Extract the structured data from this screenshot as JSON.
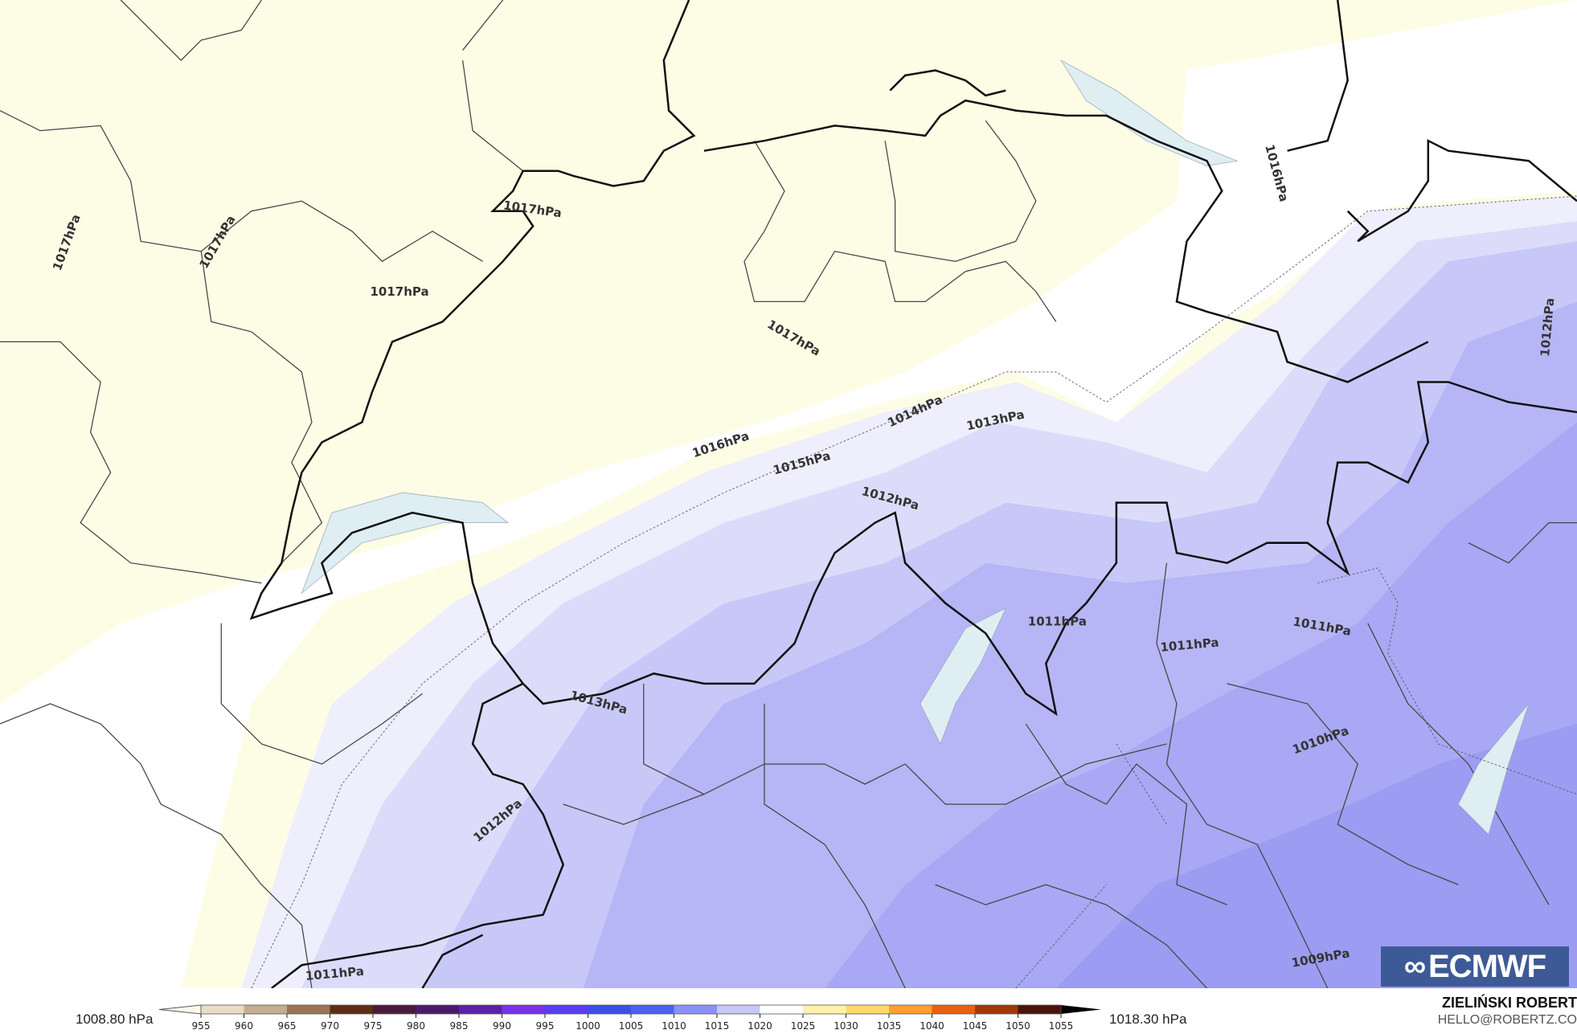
{
  "map": {
    "provider_logo": "ECMWF",
    "colors": {
      "high": "#fdfde6",
      "mid": "#ffffff",
      "low1": "#e4e4fb",
      "low2": "#cacaf8",
      "low3": "#b4b4f6",
      "low4": "#a0a0f2",
      "border": "#111111",
      "region": "#444444"
    },
    "contour_labels": [
      {
        "text": "1017hPa"
      },
      {
        "text": "1017hPa"
      },
      {
        "text": "1017hPa"
      },
      {
        "text": "1017hPa"
      },
      {
        "text": "1017hPa"
      },
      {
        "text": "1016hPa"
      },
      {
        "text": "1016hPa"
      },
      {
        "text": "1015hPa"
      },
      {
        "text": "1014hPa"
      },
      {
        "text": "1013hPa"
      },
      {
        "text": "1013hPa"
      },
      {
        "text": "1012hPa"
      },
      {
        "text": "1012hPa"
      },
      {
        "text": "1012hPa"
      },
      {
        "text": "1011hPa"
      },
      {
        "text": "1011hPa"
      },
      {
        "text": "1011hPa"
      },
      {
        "text": "1011hPa"
      },
      {
        "text": "1010hPa"
      },
      {
        "text": "1009hPa"
      }
    ]
  },
  "colorbar": {
    "min_label": "1008.80 hPa",
    "max_label": "1018.30 hPa",
    "ticks": [
      "955",
      "960",
      "965",
      "970",
      "975",
      "980",
      "985",
      "990",
      "995",
      "1000",
      "1005",
      "1010",
      "1015",
      "1020",
      "1025",
      "1030",
      "1035",
      "1040",
      "1045",
      "1050",
      "1055"
    ],
    "colors": [
      "#fbf8ec",
      "#e8dcc8",
      "#c6ad90",
      "#9a7656",
      "#5e2e14",
      "#4a1a3c",
      "#4a1a6e",
      "#5a22a8",
      "#7a32e6",
      "#5a3ef0",
      "#3a50e8",
      "#4a62f0",
      "#8a92f6",
      "#c6c8fa",
      "#ffffff",
      "#fff2a8",
      "#ffd86a",
      "#ffa030",
      "#e86010",
      "#a03808",
      "#4a1408",
      "#000000"
    ]
  },
  "author": {
    "name": "ZIELIŃSKI ROBERT",
    "email": "HELLO@ROBERTZ.CO"
  }
}
